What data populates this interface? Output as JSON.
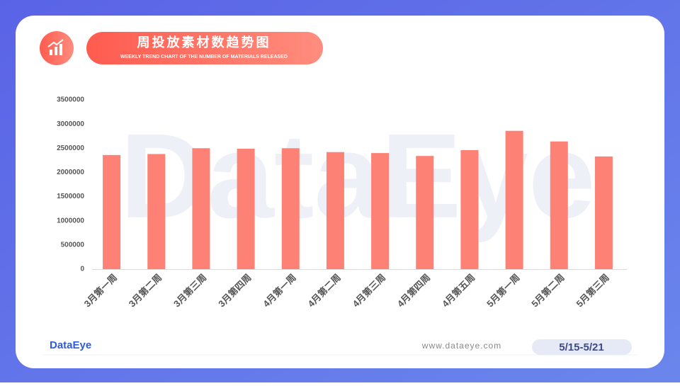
{
  "chart_data": {
    "type": "bar",
    "title": "周投放素材数趋势图",
    "subtitle": "WEEKLY TREND CHART OF THE NUMBER OF MATERIALS RELEASED",
    "categories": [
      "3月第一周",
      "3月第二周",
      "3月第三周",
      "3月第四周",
      "4月第一周",
      "4月第二周",
      "4月第三周",
      "4月第四周",
      "4月第五周",
      "5月第一周",
      "5月第二周",
      "5月第三周"
    ],
    "values": [
      2360000,
      2380000,
      2500000,
      2490000,
      2500000,
      2420000,
      2400000,
      2340000,
      2460000,
      2860000,
      2640000,
      2330000
    ],
    "color": "#fd8174",
    "ylim": [
      0,
      3500000
    ],
    "yticks": [
      0,
      500000,
      1000000,
      1500000,
      2000000,
      2500000,
      3000000,
      3500000
    ],
    "grid": false
  },
  "watermark": "DataEye",
  "footer": {
    "logo": "DataEye",
    "website": "www.dataeye.com",
    "date_range": "5/15-5/21"
  }
}
